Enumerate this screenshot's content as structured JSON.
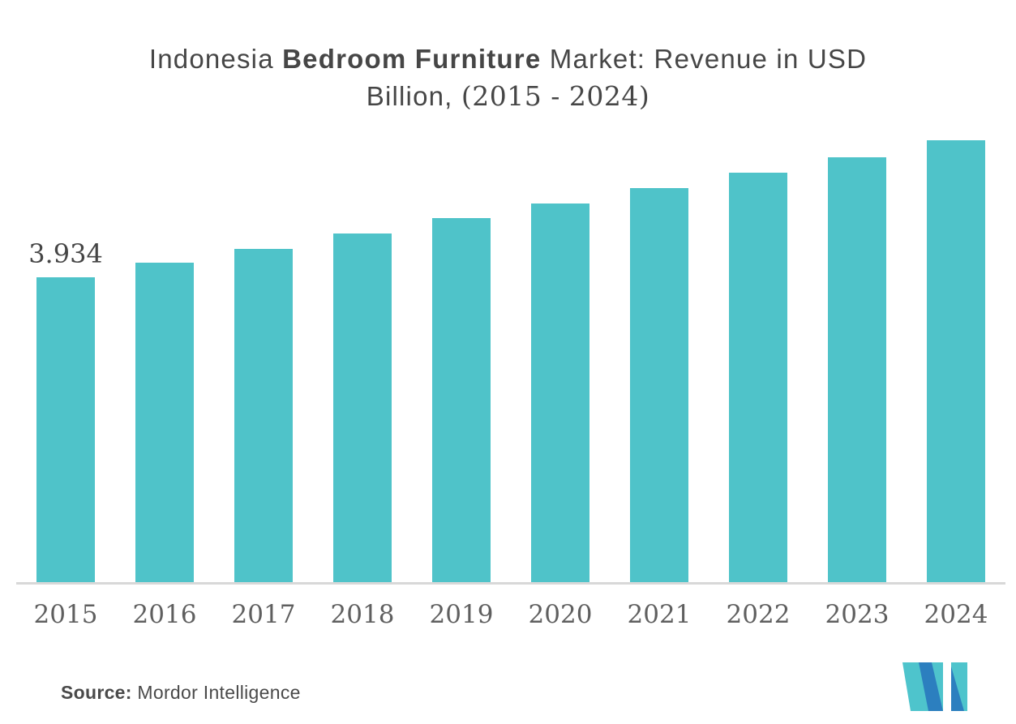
{
  "title": {
    "line1_part1": "Indonesia ",
    "line1_part2": "Bedroom Furniture",
    "line1_part3": " Market: Revenue in USD",
    "line2_part1": "Billion, ",
    "line2_part2": "(2015 - 2024)",
    "full": "Indonesia Bedroom Furniture Market: Revenue in USD Billion, (2015 - 2024)"
  },
  "chart_data": {
    "type": "bar",
    "title": "Indonesia Bedroom Furniture Market: Revenue in USD Billion, (2015 - 2024)",
    "categories": [
      "2015",
      "2016",
      "2017",
      "2018",
      "2019",
      "2020",
      "2021",
      "2022",
      "2023",
      "2024"
    ],
    "values": [
      3.934,
      4.13,
      4.31,
      4.5,
      4.7,
      4.89,
      5.09,
      5.29,
      5.49,
      5.71
    ],
    "data_labels": {
      "0": "3.934"
    },
    "xlabel": "",
    "ylabel": "",
    "ylim": [
      0,
      5.95
    ],
    "grid": false,
    "legend": "none",
    "bar_color": "#4FC3C9"
  },
  "source": {
    "label": "Source:",
    "text": " Mordor Intelligence"
  },
  "logo": {
    "name": "Mordor Intelligence logo"
  },
  "colors": {
    "bar": "#4FC3C9",
    "axis_line": "#D8D8D8",
    "title_text": "#464646",
    "tick_text": "#5F5F5F",
    "source_text": "#4A4A4A",
    "logo_teal": "#4EC4CC",
    "logo_blue": "#2C7FBF"
  }
}
